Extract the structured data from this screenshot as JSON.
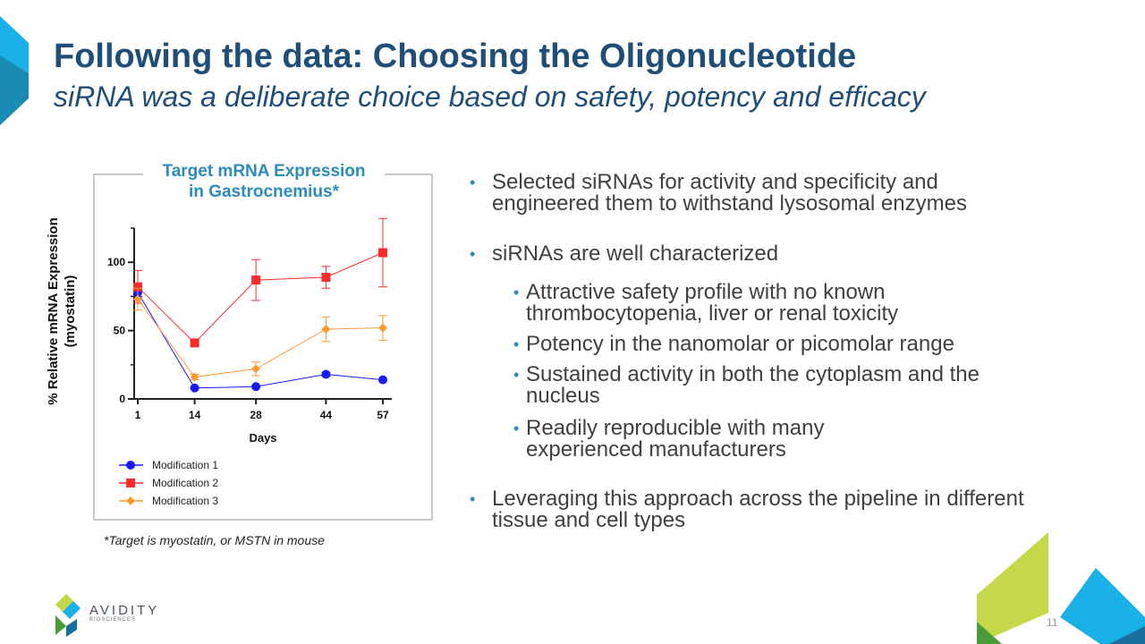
{
  "header": {
    "title": "Following the data: Choosing the Oligonucleotide",
    "subtitle": "siRNA was a deliberate choice based on safety, potency and efficacy"
  },
  "chart_data": {
    "type": "line",
    "title": "Target mRNA Expression in Gastrocnemius*",
    "title_lines": [
      "Target mRNA Expression",
      "in Gastrocnemius*"
    ],
    "xlabel": "Days",
    "ylabel": "% Relative mRNA Expression (myostatin)",
    "ylabel_lines": [
      "% Relative mRNA Expression",
      "(myostatin)"
    ],
    "x": [
      1,
      14,
      28,
      44,
      57
    ],
    "xticks": [
      "1",
      "14",
      "28",
      "44",
      "57"
    ],
    "yticks": [
      0,
      50,
      100
    ],
    "ylim": [
      0,
      125
    ],
    "legend_position": "bottom-left",
    "series": [
      {
        "name": "Modification 1",
        "color": "#1a1aff",
        "marker": "circle",
        "values": [
          78,
          8,
          9,
          18,
          14
        ],
        "err": [
          3,
          1,
          1,
          1.5,
          1
        ]
      },
      {
        "name": "Modification 2",
        "color": "#ff2a2a",
        "marker": "square",
        "values": [
          82,
          41,
          87,
          89,
          107
        ],
        "err": [
          12,
          2,
          15,
          8,
          25
        ]
      },
      {
        "name": "Modification 3",
        "color": "#ff9a30",
        "marker": "diamond",
        "values": [
          73,
          16,
          22,
          51,
          52
        ],
        "err": [
          8,
          2,
          5,
          9,
          9
        ]
      }
    ],
    "footnote": "*Target is myostatin, or MSTN in mouse"
  },
  "bullets": {
    "b1": [
      "Selected siRNAs for activity and specificity and",
      "engineered them to withstand lysosomal enzymes"
    ],
    "b2": "siRNAs are well characterized",
    "sub1": [
      "Attractive safety profile with no known",
      "thrombocytopenia, liver or renal toxicity"
    ],
    "sub2": "Potency in the nanomolar or picomolar range",
    "sub3": [
      "Sustained activity in both the cytoplasm and the",
      "nucleus"
    ],
    "sub4": [
      "Readily reproducible with many",
      "experienced manufacturers"
    ],
    "b3": [
      "Leveraging this approach across the pipeline in different",
      "tissue and cell types"
    ],
    "bullet_char": "•"
  },
  "footer": {
    "logo_text": "AVIDITY",
    "logo_sub": "BIOSCIENCES",
    "page_number": "11"
  },
  "colors": {
    "title": "#1f4e79",
    "accent_blue": "#2a8bbf",
    "accent_green": "#c5d84a",
    "accent_cyan": "#1ab0e8"
  }
}
